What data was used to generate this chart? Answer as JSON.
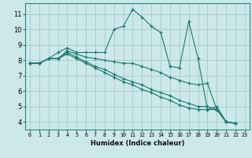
{
  "xlabel": "Humidex (Indice chaleur)",
  "background_color": "#cce8ea",
  "grid_color": "#aacdd0",
  "line_color": "#1a7a6e",
  "xlim": [
    -0.5,
    23.5
  ],
  "ylim": [
    3.5,
    11.7
  ],
  "xticks": [
    0,
    1,
    2,
    3,
    4,
    5,
    6,
    7,
    8,
    9,
    10,
    11,
    12,
    13,
    14,
    15,
    16,
    17,
    18,
    19,
    20,
    21,
    22,
    23
  ],
  "yticks": [
    4,
    5,
    6,
    7,
    8,
    9,
    10,
    11
  ],
  "series": [
    [
      7.8,
      7.8,
      8.1,
      8.5,
      8.8,
      8.5,
      8.5,
      8.5,
      8.5,
      10.0,
      10.2,
      11.3,
      10.8,
      10.2,
      9.8,
      7.6,
      7.5,
      10.5,
      8.1,
      4.8,
      5.0,
      4.0,
      3.9
    ],
    [
      7.8,
      7.8,
      8.1,
      8.1,
      8.6,
      8.4,
      8.2,
      8.1,
      8.0,
      7.9,
      7.8,
      7.8,
      7.6,
      7.4,
      7.2,
      6.9,
      6.7,
      6.5,
      6.4,
      6.5,
      4.8,
      4.0,
      3.9
    ],
    [
      7.8,
      7.8,
      8.1,
      8.1,
      8.5,
      8.2,
      7.9,
      7.6,
      7.4,
      7.1,
      6.8,
      6.6,
      6.4,
      6.1,
      5.9,
      5.7,
      5.4,
      5.2,
      5.0,
      5.0,
      4.8,
      4.0,
      3.9
    ],
    [
      7.8,
      7.8,
      8.1,
      8.1,
      8.4,
      8.1,
      7.8,
      7.5,
      7.2,
      6.9,
      6.6,
      6.4,
      6.1,
      5.9,
      5.6,
      5.4,
      5.1,
      4.9,
      4.8,
      4.8,
      4.8,
      4.0,
      3.9
    ]
  ]
}
